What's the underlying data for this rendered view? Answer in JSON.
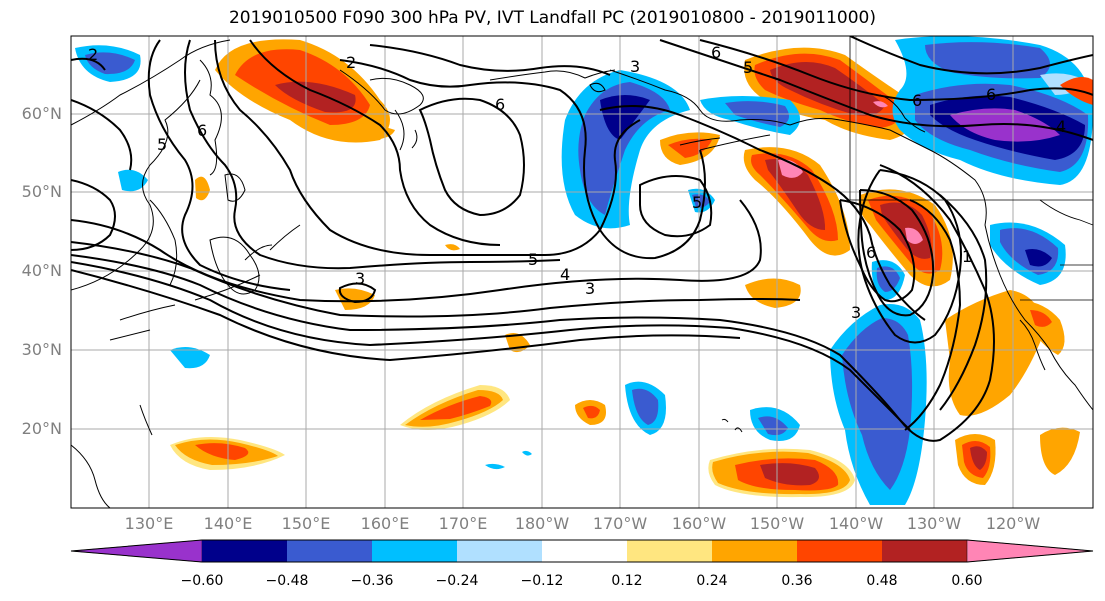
{
  "title": "2019010500 F090 300 hPa PV, IVT Landfall PC (2019010800 - 2019011000)",
  "latitude_labels": [
    "60°N",
    "50°N",
    "40°N",
    "30°N",
    "20°N"
  ],
  "longitude_labels": [
    "130°E",
    "140°E",
    "150°E",
    "160°E",
    "170°E",
    "180°W",
    "170°W",
    "160°W",
    "150°W",
    "140°W",
    "130°W",
    "120°W"
  ],
  "colorbar": {
    "ticks": [
      "−0.60",
      "−0.48",
      "−0.36",
      "−0.24",
      "−0.12",
      "0.12",
      "0.24",
      "0.36",
      "0.48",
      "0.60"
    ],
    "colors": [
      "#9932cc",
      "#00008b",
      "#3a5bd0",
      "#00bfff",
      "#b0e0ff",
      "#ffffff",
      "#ffe680",
      "#ffa500",
      "#ff4500",
      "#b22222",
      "#ff85b5"
    ]
  },
  "contour_labels": [
    "2",
    "6",
    "3",
    "6",
    "5",
    "6",
    "6",
    "2",
    "5",
    "5",
    "4",
    "3",
    "3",
    "5",
    "6",
    "3",
    "4",
    "1",
    "6"
  ]
}
